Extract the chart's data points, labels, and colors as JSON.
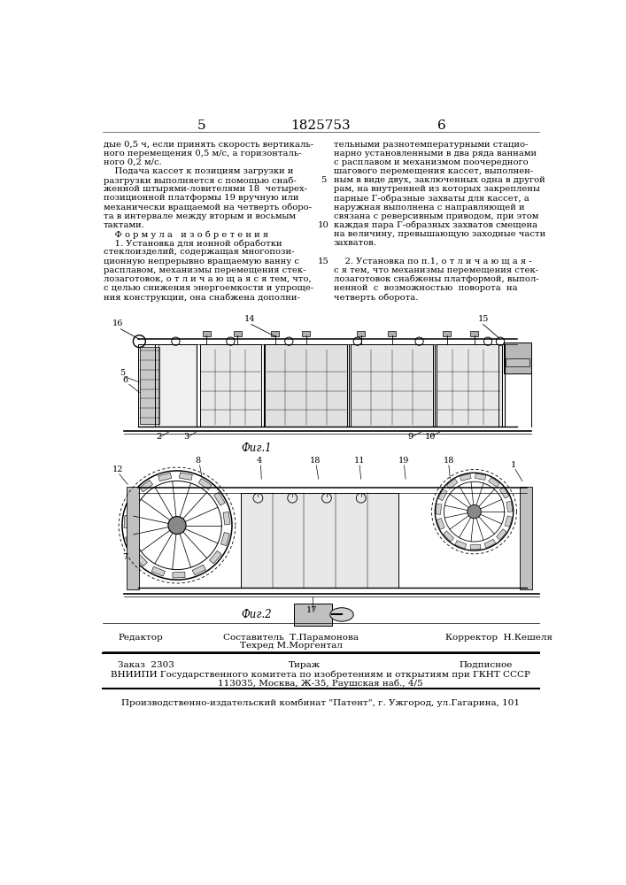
{
  "page_number_left": "5",
  "patent_number": "1825753",
  "page_number_right": "6",
  "background_color": "#ffffff",
  "text_color": "#000000",
  "col_left_lines": [
    "дые 0,5 ч, если принять скорость вертикаль-",
    "ного перемещения 0,5 м/с, а горизонталь-",
    "ного 0,2 м/с.",
    "    Подача кассет к позициям загрузки и",
    "разгрузки выполняется с помощью снаб-",
    "женной штырями-ловителями 18  четырех-",
    "позиционной платформы 19 вручную или",
    "механически вращаемой на четверть оборо-",
    "та в интервале между вторым и восьмым",
    "тактами.",
    "    Ф о р м у л а   и з о б р е т е н и я",
    "    1. Установка для ионной обработки",
    "стеклоизделий, содержащая многопози-",
    "ционную непрерывно вращаемую ванну с",
    "расплавом, механизмы перемещения стек-",
    "лозаготовок, о т л и ч а ю щ а я с я тем, что,",
    "с целью снижения энергоемкости и упроще-",
    "ния конструкции, она снабжена дополни-"
  ],
  "col_right_lines": [
    "тельными разнотемпературными стацио-",
    "нарно установленными в два ряда ваннами",
    "с расплавом и механизмом поочередного",
    "шагового перемещения кассет, выполнен-",
    "ным в виде двух, заключенных одна в другой",
    "рам, на внутренней из которых закреплены",
    "парные Г-образные захваты для кассет, а",
    "наружная выполнена с направляющей и",
    "связана с реверсивным приводом, при этом",
    "каждая пара Г-образных захватов смещена",
    "на величину, превышающую заходные части",
    "захватов.",
    "",
    "    2. Установка по п.1, о т л и ч а ю щ а я -",
    "с я тем, что механизмы перемещения стек-",
    "лозаготовок снабжены платформой, выпол-",
    "ненной  с  возможностью  поворота  на",
    "четверть оборота."
  ],
  "fig1_label": "Фиг.1",
  "fig2_label": "Фиг.2",
  "editor_label": "Редактор",
  "composer_label": "Составитель  Т.Парамонова",
  "techred_label": "Техред М.Моргентал",
  "corrector_label": "Корректор  Н.Кешеля",
  "order_label": "Заказ  2303",
  "tirazh_label": "Тираж",
  "podpisnoe_label": "Подписное",
  "vniiipi_line1": "ВНИИПИ Государственного комитета по изобретениям и открытиям при ГКНТ СССР",
  "vniiipi_line2": "113035, Москва, Ж-35, Раушская наб., 4/5",
  "production_line": "Производственно-издательский комбинат \"Патент\", г. Ужгород, ул.Гагарина, 101"
}
